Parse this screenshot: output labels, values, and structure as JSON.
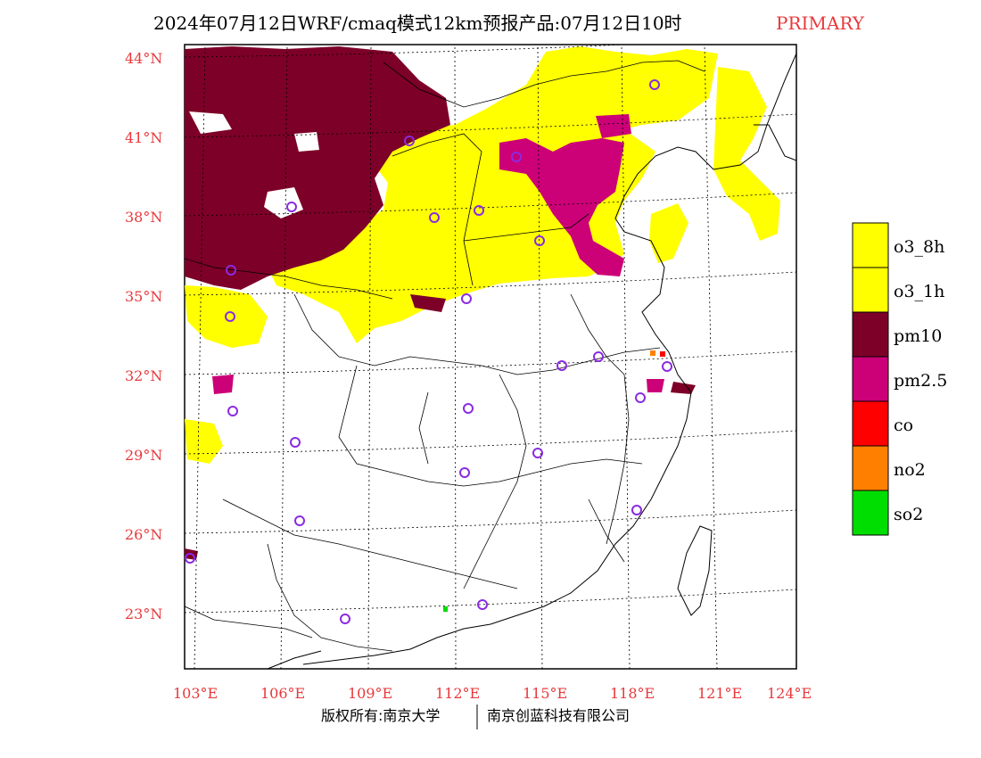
{
  "title": {
    "main": "2024年07月12日WRF/cmaq模式12km预报产品:07月12日10时",
    "accent": "PRIMARY"
  },
  "axes": {
    "lat_labels": [
      "44°N",
      "41°N",
      "38°N",
      "35°N",
      "32°N",
      "29°N",
      "26°N",
      "23°N"
    ],
    "lon_labels": [
      "103°E",
      "106°E",
      "109°E",
      "112°E",
      "115°E",
      "118°E",
      "121°E",
      "124°E"
    ]
  },
  "legend": {
    "items": [
      {
        "label": "o3_8h",
        "color": "#ffff00"
      },
      {
        "label": "o3_1h",
        "color": "#ffff00"
      },
      {
        "label": "pm10",
        "color": "#7d0028"
      },
      {
        "label": "pm2.5",
        "color": "#cc0077"
      },
      {
        "label": "co",
        "color": "#ff0000"
      },
      {
        "label": "no2",
        "color": "#ff8000"
      },
      {
        "label": "so2",
        "color": "#00dd00"
      }
    ]
  },
  "colors": {
    "o3": "#ffff00",
    "pm10": "#7d0028",
    "pm25": "#cc0077",
    "station": "#8a2be2",
    "axis_label": "#e8383b"
  },
  "footer": {
    "left": "版权所有:南京大学",
    "right": "南京创蓝科技有限公司"
  }
}
